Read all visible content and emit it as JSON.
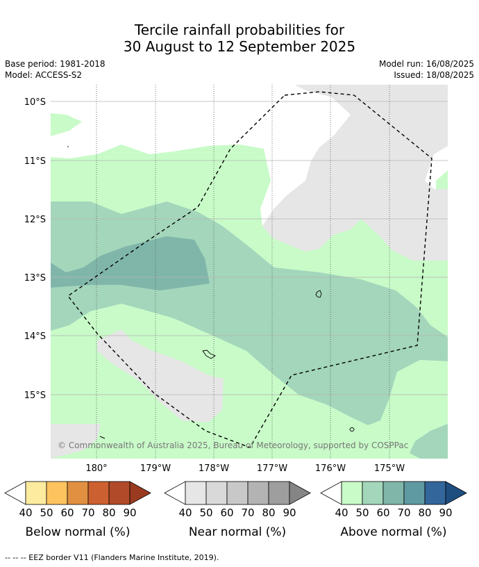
{
  "title_line1": "Tercile rainfall probabilities for",
  "title_line2": "30 August to 12 September 2025",
  "base_period": "Base period: 1981-2018",
  "model": "Model: ACCESS-S2",
  "model_run": "Model run: 16/08/2025",
  "issued": "Issued: 18/08/2025",
  "lat_labels": [
    "10°S",
    "11°S",
    "12°S",
    "13°S",
    "14°S",
    "15°S"
  ],
  "lon_labels": [
    "180°",
    "179°W",
    "178°W",
    "177°W",
    "176°W",
    "175°W"
  ],
  "copyright": "© Commonwealth of Australia 2025, Bureau of Meteorology, supported by COSPPac",
  "legend": [
    {
      "title": "Below normal (%)",
      "ticks": [
        "40",
        "50",
        "60",
        "70",
        "80",
        "90"
      ],
      "colors": [
        "#ffffff",
        "#fdeba0",
        "#fdc35f",
        "#e09040",
        "#cd6030",
        "#b14a28",
        "#9a3a20"
      ]
    },
    {
      "title": "Near normal (%)",
      "ticks": [
        "40",
        "50",
        "60",
        "70",
        "80",
        "90"
      ],
      "colors": [
        "#ffffff",
        "#e6e6e6",
        "#d9d9d9",
        "#c8c8c8",
        "#b3b3b3",
        "#9e9e9e",
        "#858585"
      ]
    },
    {
      "title": "Above normal (%)",
      "ticks": [
        "40",
        "50",
        "60",
        "70",
        "80",
        "90"
      ],
      "colors": [
        "#ffffff",
        "#c8fbc8",
        "#a3d6bb",
        "#80b6aa",
        "#5f9aa3",
        "#33669a",
        "#1e4e80"
      ]
    }
  ],
  "footnote": "--  --  -- EEZ border V11 (Flanders Marine Institute, 2019)."
}
